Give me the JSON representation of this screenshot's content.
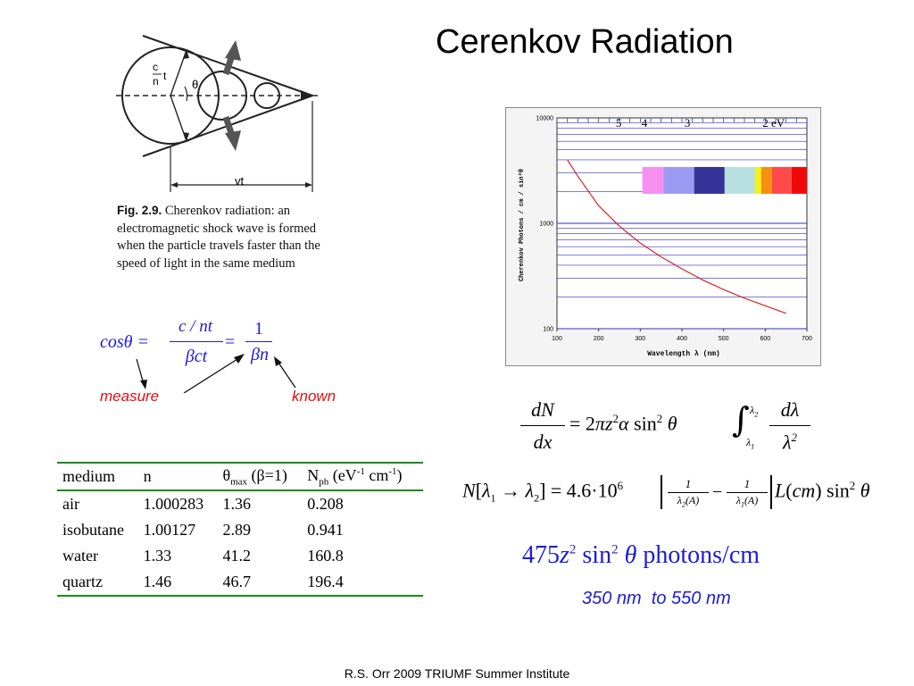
{
  "slide": {
    "title": "Cerenkov Radiation",
    "footer": "R.S. Orr 2009 TRIUMF Summer Institute"
  },
  "figure": {
    "label_c": "c",
    "label_n": "n",
    "label_t": "t",
    "label_theta": "θ",
    "label_vt": "vt",
    "caption_fig": "Fig. 2.9.",
    "caption_text": "Cherenkov radiation: an electromagnetic shock wave is formed when the particle travels faster than the speed of light in the same medium"
  },
  "cos_formula": {
    "lhs": "cosθ =",
    "num1": "c / nt",
    "den1": "βct",
    "eq2": "=",
    "num2": "1",
    "den2": "βn",
    "measure": "measure",
    "known": "known"
  },
  "table": {
    "headers": [
      "medium",
      "n",
      "θmax (β=1)",
      "Nph (eV-1 cm-1)"
    ],
    "rows": [
      [
        "air",
        "1.000283",
        "1.36",
        "0.208"
      ],
      [
        "isobutane",
        "1.00127",
        "2.89",
        "0.941"
      ],
      [
        "water",
        "1.33",
        "41.2",
        "160.8"
      ],
      [
        "quartz",
        "1.46",
        "46.7",
        "196.4"
      ]
    ]
  },
  "equations": {
    "dn_dx": "dN/dx = 2πz²α sin²θ ∫λ1λ2 dλ/λ²",
    "n_lambda": "N[λ1 → λ2] = 4.6·10⁶ [1/λ2(A) − 1/λ1(A)] L(cm) sin²θ",
    "photons": "475z² sin²θ photons/cm",
    "range": "350 nm  to 550 nm"
  },
  "chart_data": {
    "type": "line",
    "xlabel": "Wavelength λ  (nm)",
    "ylabel": "Cherenkov Photons / cm / sin²θ",
    "xlim": [
      100,
      700
    ],
    "ylim": [
      100,
      10000
    ],
    "log_y": true,
    "x_ticks": [
      "100",
      "200",
      "300",
      "400",
      "500",
      "600",
      "700"
    ],
    "y_ticks": [
      "100",
      "1000",
      "10000"
    ],
    "energy_labels": [
      "5",
      "4",
      "3",
      "2 eV"
    ],
    "series": [
      {
        "x": [
          125,
          150,
          200,
          250,
          300,
          350,
          400,
          450,
          500,
          550,
          600,
          650
        ],
        "y": [
          4000,
          2800,
          1470,
          940,
          650,
          480,
          370,
          290,
          235,
          195,
          165,
          140
        ]
      }
    ],
    "spectrum_colors": [
      "#f590f0",
      "#9a9af2",
      "#343498",
      "#b8e0e0",
      "#f2f21a",
      "#f59010",
      "#ff4a4a",
      "#f20a0a"
    ],
    "curve_color": "#dd2222",
    "grid_color": "#3030c8"
  }
}
